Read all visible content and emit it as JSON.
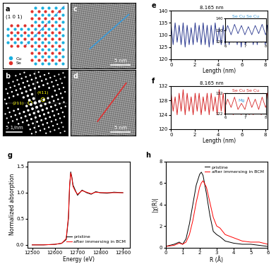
{
  "chart_data": [
    {
      "type": "line",
      "title": "e",
      "x": [
        0,
        0.17,
        0.34,
        0.51,
        0.68,
        0.85,
        1.02,
        1.19,
        1.36,
        1.53,
        1.7,
        1.87,
        2.04,
        2.21,
        2.38,
        2.55,
        2.72,
        2.89,
        3.06,
        3.23,
        3.4,
        3.57,
        3.74,
        3.91,
        4.08,
        4.25,
        4.42,
        4.59,
        4.76,
        4.93,
        5.1,
        5.27,
        5.44,
        5.61,
        5.78,
        5.95,
        6.12,
        6.29,
        6.46,
        6.63,
        6.8,
        6.97,
        7.14,
        7.31,
        7.48,
        7.65,
        7.82,
        7.99,
        8.16
      ],
      "series": [
        {
          "color": "#2b3990",
          "values": [
            134,
            126,
            135,
            127,
            134,
            126,
            135,
            125,
            134,
            126,
            133,
            126,
            135,
            127,
            134,
            126,
            135,
            126,
            134,
            125,
            134,
            126,
            135,
            127,
            133,
            126,
            134,
            126,
            135,
            126,
            134,
            127,
            133,
            126,
            134,
            125,
            134,
            126,
            135,
            127,
            134,
            126,
            133,
            126,
            134,
            127,
            135,
            126,
            134
          ]
        }
      ],
      "xlabel": "Length (nm)",
      "xlim": [
        0,
        8.2
      ],
      "xticks": [
        0,
        2,
        4,
        6,
        8
      ],
      "ylim": [
        120,
        140
      ],
      "yticks": [
        120,
        125,
        130,
        135,
        140
      ],
      "annotations": [
        {
          "text": "8.165 nm"
        }
      ],
      "inset": {
        "xlim": [
          6,
          8
        ],
        "xticks": [
          6,
          7,
          8
        ],
        "ylim": [
          120,
          140
        ],
        "yticks": [
          120,
          130,
          140
        ],
        "label_text": "Se Cu Se Cu",
        "label_color": "#3a9ad9",
        "annotations": []
      }
    },
    {
      "type": "line",
      "title": "f",
      "x": [
        0,
        0.17,
        0.34,
        0.51,
        0.68,
        0.85,
        1.02,
        1.19,
        1.36,
        1.53,
        1.7,
        1.87,
        2.04,
        2.21,
        2.38,
        2.55,
        2.72,
        2.89,
        3.06,
        3.23,
        3.4,
        3.57,
        3.74,
        3.91,
        4.08,
        4.25,
        4.42,
        4.59,
        4.76,
        4.93,
        5.1,
        5.27,
        5.44,
        5.61,
        5.78,
        5.95,
        6.12,
        6.29,
        6.46,
        6.63,
        6.8,
        6.97,
        7.14,
        7.31,
        7.48,
        7.65,
        7.82,
        7.99,
        8.16
      ],
      "series": [
        {
          "color": "#d62728",
          "values": [
            130,
            125,
            129,
            124,
            130,
            125,
            131,
            124,
            130,
            125,
            129,
            124,
            130,
            125,
            130,
            124,
            129,
            125,
            130,
            124,
            130,
            125,
            129,
            124,
            131,
            125,
            130,
            124,
            130,
            125,
            129,
            124,
            130,
            125,
            130,
            124,
            129,
            125,
            130,
            124,
            127,
            124,
            130,
            125,
            129,
            124,
            130,
            125,
            130
          ]
        }
      ],
      "xlabel": "Length (nm)",
      "xlim": [
        0,
        8.2
      ],
      "xticks": [
        0,
        2,
        4,
        6,
        8
      ],
      "ylim": [
        120,
        132
      ],
      "yticks": [
        120,
        124,
        128,
        132
      ],
      "annotations": [
        {
          "text": "8.165 nm"
        }
      ],
      "inset": {
        "xlim": [
          6,
          8
        ],
        "xticks": [
          6,
          7,
          8
        ],
        "ylim": [
          122,
          132
        ],
        "yticks": [
          122,
          132
        ],
        "label_text": "Se Cu Se Cu",
        "label_color": "#d62728",
        "annotations": [
          {
            "text": "Mg",
            "color": "#3a9ad9"
          }
        ]
      }
    },
    {
      "type": "line",
      "title": "g",
      "x": [
        12500,
        12550,
        12600,
        12630,
        12650,
        12660,
        12665,
        12670,
        12675,
        12680,
        12690,
        12700,
        12720,
        12740,
        12760,
        12780,
        12800,
        12830,
        12860,
        12900
      ],
      "series": [
        {
          "name": "pristine",
          "color": "black",
          "values": [
            0,
            0,
            0.01,
            0.03,
            0.1,
            0.5,
            1.1,
            1.4,
            1.3,
            1.15,
            1.05,
            0.95,
            1.05,
            1.0,
            0.97,
            1.02,
            1.0,
            0.99,
            1.01,
            1.0
          ]
        },
        {
          "name": "after immersing in BCM",
          "color": "red",
          "values": [
            0,
            0,
            0.01,
            0.03,
            0.12,
            0.55,
            1.15,
            1.38,
            1.28,
            1.12,
            1.03,
            0.97,
            1.04,
            1.01,
            0.98,
            1.01,
            1.0,
            1.0,
            1.0,
            1.0
          ]
        }
      ],
      "xlabel": "Energy (eV)",
      "ylabel": "Normalized absorption",
      "xlim": [
        12480,
        12930
      ],
      "xticks": [
        12500,
        12600,
        12700,
        12800,
        12900
      ],
      "ylim": [
        -0.05,
        1.6
      ],
      "yticks": [
        {
          "value": 0,
          "label": "0.0"
        },
        {
          "value": 0.5,
          "label": "0.5"
        },
        {
          "value": 1.0,
          "label": "1.0"
        },
        {
          "value": 1.5,
          "label": "1.5"
        }
      ],
      "legend": "lower right"
    },
    {
      "type": "line",
      "title": "h",
      "x": [
        0,
        0.5,
        0.8,
        1.0,
        1.2,
        1.4,
        1.6,
        1.8,
        2.0,
        2.1,
        2.2,
        2.4,
        2.6,
        2.8,
        3.0,
        3.2,
        3.5,
        4.0,
        4.5,
        5.0,
        5.5,
        6.0
      ],
      "series": [
        {
          "name": "pristine",
          "color": "black",
          "values": [
            0.1,
            0.3,
            0.5,
            0.3,
            0.8,
            2.2,
            4.0,
            5.8,
            6.8,
            7.0,
            6.7,
            5.0,
            3.0,
            1.5,
            1.2,
            1.0,
            0.6,
            0.4,
            0.3,
            0.3,
            0.2,
            0.1
          ]
        },
        {
          "name": "after immersing in BCM",
          "color": "red",
          "values": [
            0.1,
            0.2,
            0.4,
            0.3,
            0.5,
            1.2,
            2.5,
            4.2,
            5.6,
            6.0,
            6.2,
            5.6,
            4.2,
            2.8,
            2.0,
            1.8,
            1.2,
            0.9,
            0.6,
            0.5,
            0.5,
            0.3
          ]
        }
      ],
      "xlabel": "R (Å)",
      "ylabel": "|χ(R)|",
      "xlim": [
        0,
        6
      ],
      "xticks": [
        0,
        1,
        2,
        3,
        4,
        5,
        6
      ],
      "ylim": [
        0,
        8
      ],
      "yticks": [
        0,
        2,
        4,
        6,
        8
      ],
      "legend": "upper right"
    }
  ],
  "images": [
    {
      "label": "a",
      "annotations": [
        "(1 0 1)"
      ],
      "legend": "lower left",
      "species": [
        {
          "name": "Cu",
          "color": "#1ab0e0"
        },
        {
          "name": "Se",
          "color": "#e0302a"
        }
      ]
    },
    {
      "label": "b",
      "annotations": [
        "(211)",
        "(411)"
      ],
      "scale_bar": "5 1/nm"
    },
    {
      "label": "c",
      "scale_bar": "5 nm",
      "line_color": "#3a9ad9"
    },
    {
      "label": "d",
      "scale_bar": "5 nm",
      "line_color": "#e03030"
    }
  ]
}
